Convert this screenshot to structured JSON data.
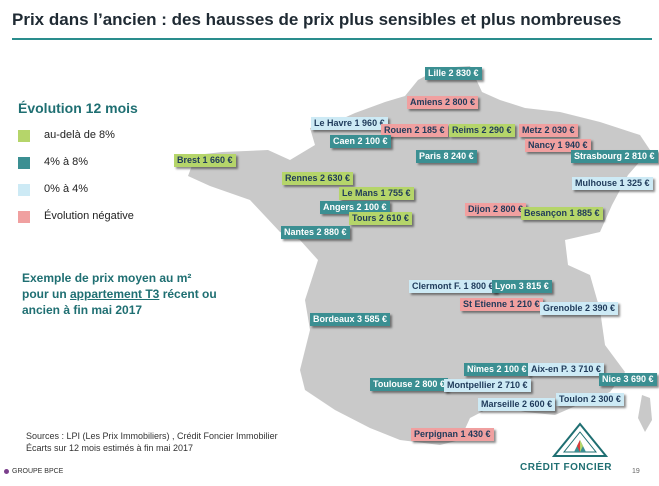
{
  "title": "Prix dans l’ancien : des hausses de prix plus sensibles et plus nombreuses",
  "colors": {
    "accent": "#2a8d8d",
    "map_fill": "#c9c9c9",
    "above_8": "#b5d56a",
    "from_4_to_8": "#3b8f92",
    "from_0_to_4": "#cdeaf5",
    "negative": "#f0a0a0"
  },
  "legend": {
    "title": "Évolution 12 mois",
    "items": [
      {
        "label": "au-delà de 8%",
        "category": "above_8"
      },
      {
        "label": "4% à 8%",
        "category": "from_4_to_8"
      },
      {
        "label": "0% à 4%",
        "category": "from_0_to_4"
      },
      {
        "label": "Évolution négative",
        "category": "negative"
      }
    ]
  },
  "example": {
    "line1": "Exemple de prix moyen au m²",
    "line2_pre": "pour un ",
    "line2_link": "appartement T3",
    "line2_post": " récent ou",
    "line3": "ancien à fin mai 2017"
  },
  "sources": {
    "line1": "Sources :  LPI (Les Prix Immobiliers) , Crédit Foncier Immobilier",
    "line2": "Écarts sur 12 mois estimés à fin mai 2017"
  },
  "cities": [
    {
      "name": "Lille",
      "price": "2 830 €",
      "category": "from_4_to_8"
    },
    {
      "name": "Amiens",
      "price": "2 800 €",
      "category": "negative"
    },
    {
      "name": "Le Havre",
      "price": "1 960 €",
      "category": "from_0_to_4"
    },
    {
      "name": "Rouen",
      "price": "2 185 €",
      "category": "negative"
    },
    {
      "name": "Reims",
      "price": "2 290 €",
      "category": "above_8"
    },
    {
      "name": "Metz",
      "price": "2 030 €",
      "category": "negative"
    },
    {
      "name": "Caen",
      "price": "2 100 €",
      "category": "from_4_to_8"
    },
    {
      "name": "Nancy",
      "price": "1 940 €",
      "category": "negative"
    },
    {
      "name": "Brest",
      "price": "1 660 €",
      "category": "above_8"
    },
    {
      "name": "Paris",
      "price": "8 240 €",
      "category": "from_4_to_8"
    },
    {
      "name": "Strasbourg",
      "price": "2 810 €",
      "category": "from_4_to_8"
    },
    {
      "name": "Rennes",
      "price": "2 630 €",
      "category": "above_8"
    },
    {
      "name": "Mulhouse",
      "price": "1 325 €",
      "category": "from_0_to_4"
    },
    {
      "name": "Le Mans",
      "price": "1 755 €",
      "category": "above_8"
    },
    {
      "name": "Angers",
      "price": "2 100 €",
      "category": "from_4_to_8"
    },
    {
      "name": "Dijon",
      "price": "2 800 €",
      "category": "negative"
    },
    {
      "name": "Tours",
      "price": "2 610 €",
      "category": "above_8"
    },
    {
      "name": "Besançon",
      "price": "1 885 €",
      "category": "above_8"
    },
    {
      "name": "Nantes",
      "price": "2 880 €",
      "category": "from_4_to_8"
    },
    {
      "name": "Clermont F.",
      "price": "1 800 €",
      "category": "from_0_to_4"
    },
    {
      "name": "Lyon",
      "price": "3 815 €",
      "category": "from_4_to_8"
    },
    {
      "name": "St Etienne",
      "price": "1 210 €",
      "category": "negative"
    },
    {
      "name": "Grenoble",
      "price": "2 390 €",
      "category": "from_0_to_4"
    },
    {
      "name": "Bordeaux",
      "price": "3 585 €",
      "category": "from_4_to_8"
    },
    {
      "name": "Nîmes",
      "price": "2 100 €",
      "category": "from_4_to_8"
    },
    {
      "name": "Aix-en P.",
      "price": "3 710 €",
      "category": "from_0_to_4"
    },
    {
      "name": "Nice",
      "price": "3 690 €",
      "category": "from_4_to_8"
    },
    {
      "name": "Toulouse",
      "price": "2 800 €",
      "category": "from_4_to_8"
    },
    {
      "name": "Montpellier",
      "price": "2 710 €",
      "category": "from_0_to_4"
    },
    {
      "name": "Toulon",
      "price": "2 300 €",
      "category": "from_0_to_4"
    },
    {
      "name": "Marseille",
      "price": "2 600 €",
      "category": "from_0_to_4"
    },
    {
      "name": "Perpignan",
      "price": "1 430 €",
      "category": "negative"
    }
  ],
  "footer": {
    "group": "GROUPE BPCE",
    "brand": "CRÉDIT FONCIER",
    "page": "19"
  }
}
